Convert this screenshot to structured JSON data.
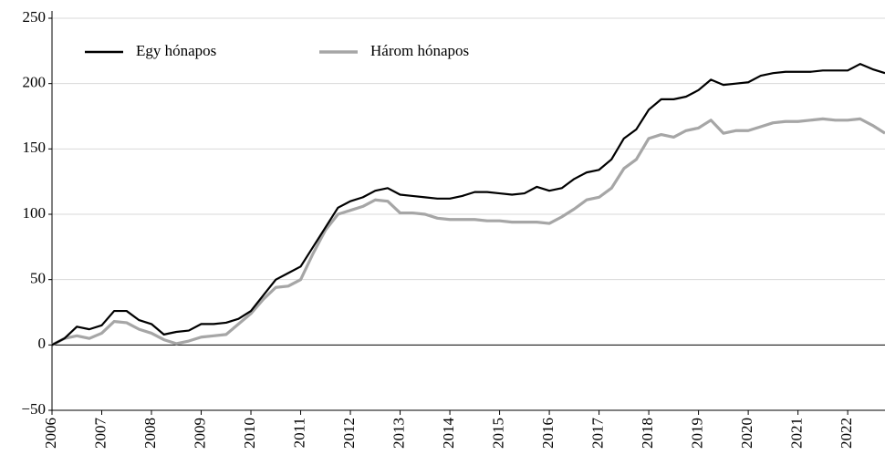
{
  "chart_data": {
    "type": "line",
    "x": [
      2006,
      2006.25,
      2006.5,
      2006.75,
      2007,
      2007.25,
      2007.5,
      2007.75,
      2008,
      2008.25,
      2008.5,
      2008.75,
      2009,
      2009.25,
      2009.5,
      2009.75,
      2010,
      2010.25,
      2010.5,
      2010.75,
      2011,
      2011.25,
      2011.5,
      2011.75,
      2012,
      2012.25,
      2012.5,
      2012.75,
      2013,
      2013.25,
      2013.5,
      2013.75,
      2014,
      2014.25,
      2014.5,
      2014.75,
      2015,
      2015.25,
      2015.5,
      2015.75,
      2016,
      2016.25,
      2016.5,
      2016.75,
      2017,
      2017.25,
      2017.5,
      2017.75,
      2018,
      2018.25,
      2018.5,
      2018.75,
      2019,
      2019.25,
      2019.5,
      2019.75,
      2020,
      2020.25,
      2020.5,
      2020.75,
      2021,
      2021.25,
      2021.5,
      2021.75,
      2022,
      2022.25,
      2022.5,
      2022.75
    ],
    "series": [
      {
        "name": "Egy hónapos",
        "color": "#000000",
        "values": [
          0,
          5,
          14,
          12,
          15,
          26,
          26,
          19,
          16,
          8,
          10,
          11,
          16,
          16,
          17,
          20,
          26,
          38,
          50,
          55,
          60,
          75,
          90,
          105,
          110,
          113,
          118,
          120,
          115,
          114,
          113,
          112,
          112,
          114,
          117,
          117,
          116,
          115,
          116,
          121,
          118,
          120,
          127,
          132,
          134,
          142,
          158,
          165,
          180,
          188,
          188,
          190,
          195,
          203,
          199,
          200,
          201,
          206,
          208,
          209,
          209,
          209,
          210,
          210,
          210,
          215,
          211,
          208
        ]
      },
      {
        "name": "Három hónapos",
        "color": "#a6a6a6",
        "values": [
          0,
          5,
          7,
          5,
          9,
          18,
          17,
          12,
          9,
          4,
          1,
          3,
          6,
          7,
          8,
          16,
          24,
          35,
          44,
          45,
          50,
          70,
          88,
          100,
          103,
          106,
          111,
          110,
          101,
          101,
          100,
          97,
          96,
          96,
          96,
          95,
          95,
          94,
          94,
          94,
          93,
          98,
          104,
          111,
          113,
          120,
          135,
          142,
          158,
          161,
          159,
          164,
          166,
          172,
          162,
          164,
          164,
          167,
          170,
          171,
          171,
          172,
          173,
          172,
          172,
          173,
          168,
          162
        ]
      }
    ],
    "xlim": [
      2006,
      2022.75
    ],
    "xticks": [
      2006,
      2007,
      2008,
      2009,
      2010,
      2011,
      2012,
      2013,
      2014,
      2015,
      2016,
      2017,
      2018,
      2019,
      2020,
      2021,
      2022
    ],
    "ylim": [
      -50,
      250
    ],
    "yticks": [
      {
        "value": -50,
        "label": "−50"
      },
      0,
      50,
      100,
      150,
      200,
      250
    ],
    "grid": true,
    "legend": "upper left"
  }
}
